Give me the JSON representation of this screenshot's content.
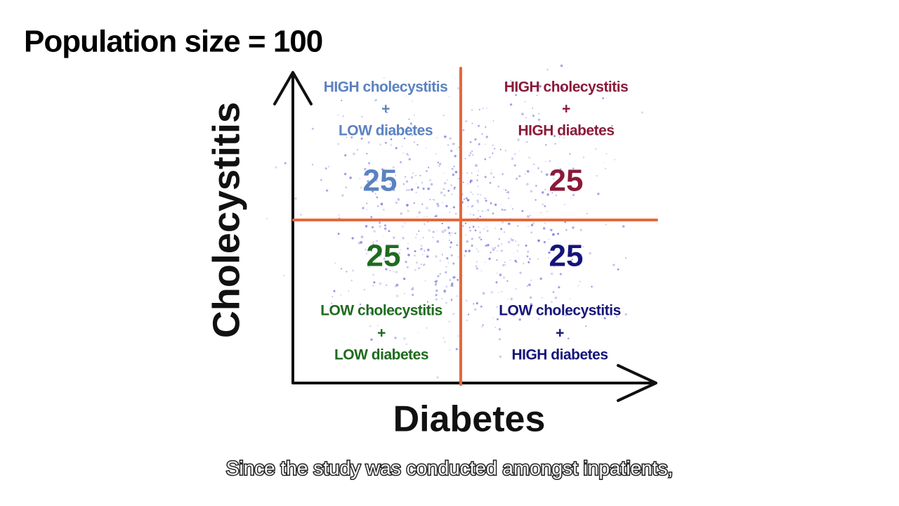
{
  "header": {
    "title": "Population size = 100"
  },
  "axes": {
    "y_label": "Cholecystitis",
    "x_label": "Diabetes"
  },
  "quadrants": [
    {
      "lines": [
        "HIGH cholecystitis",
        "+",
        "LOW diabetes"
      ],
      "count": 25
    },
    {
      "lines": [
        "HIGH cholecystitis",
        "+",
        "HIGH diabetes"
      ],
      "count": 25
    },
    {
      "lines": [
        "LOW cholecystitis",
        "+",
        "LOW diabetes"
      ],
      "count": 25
    },
    {
      "lines": [
        "LOW cholecystitis",
        "+",
        "HIGH diabetes"
      ],
      "count": 25
    }
  ],
  "caption": "Since the study was conducted amongst inpatients,"
}
